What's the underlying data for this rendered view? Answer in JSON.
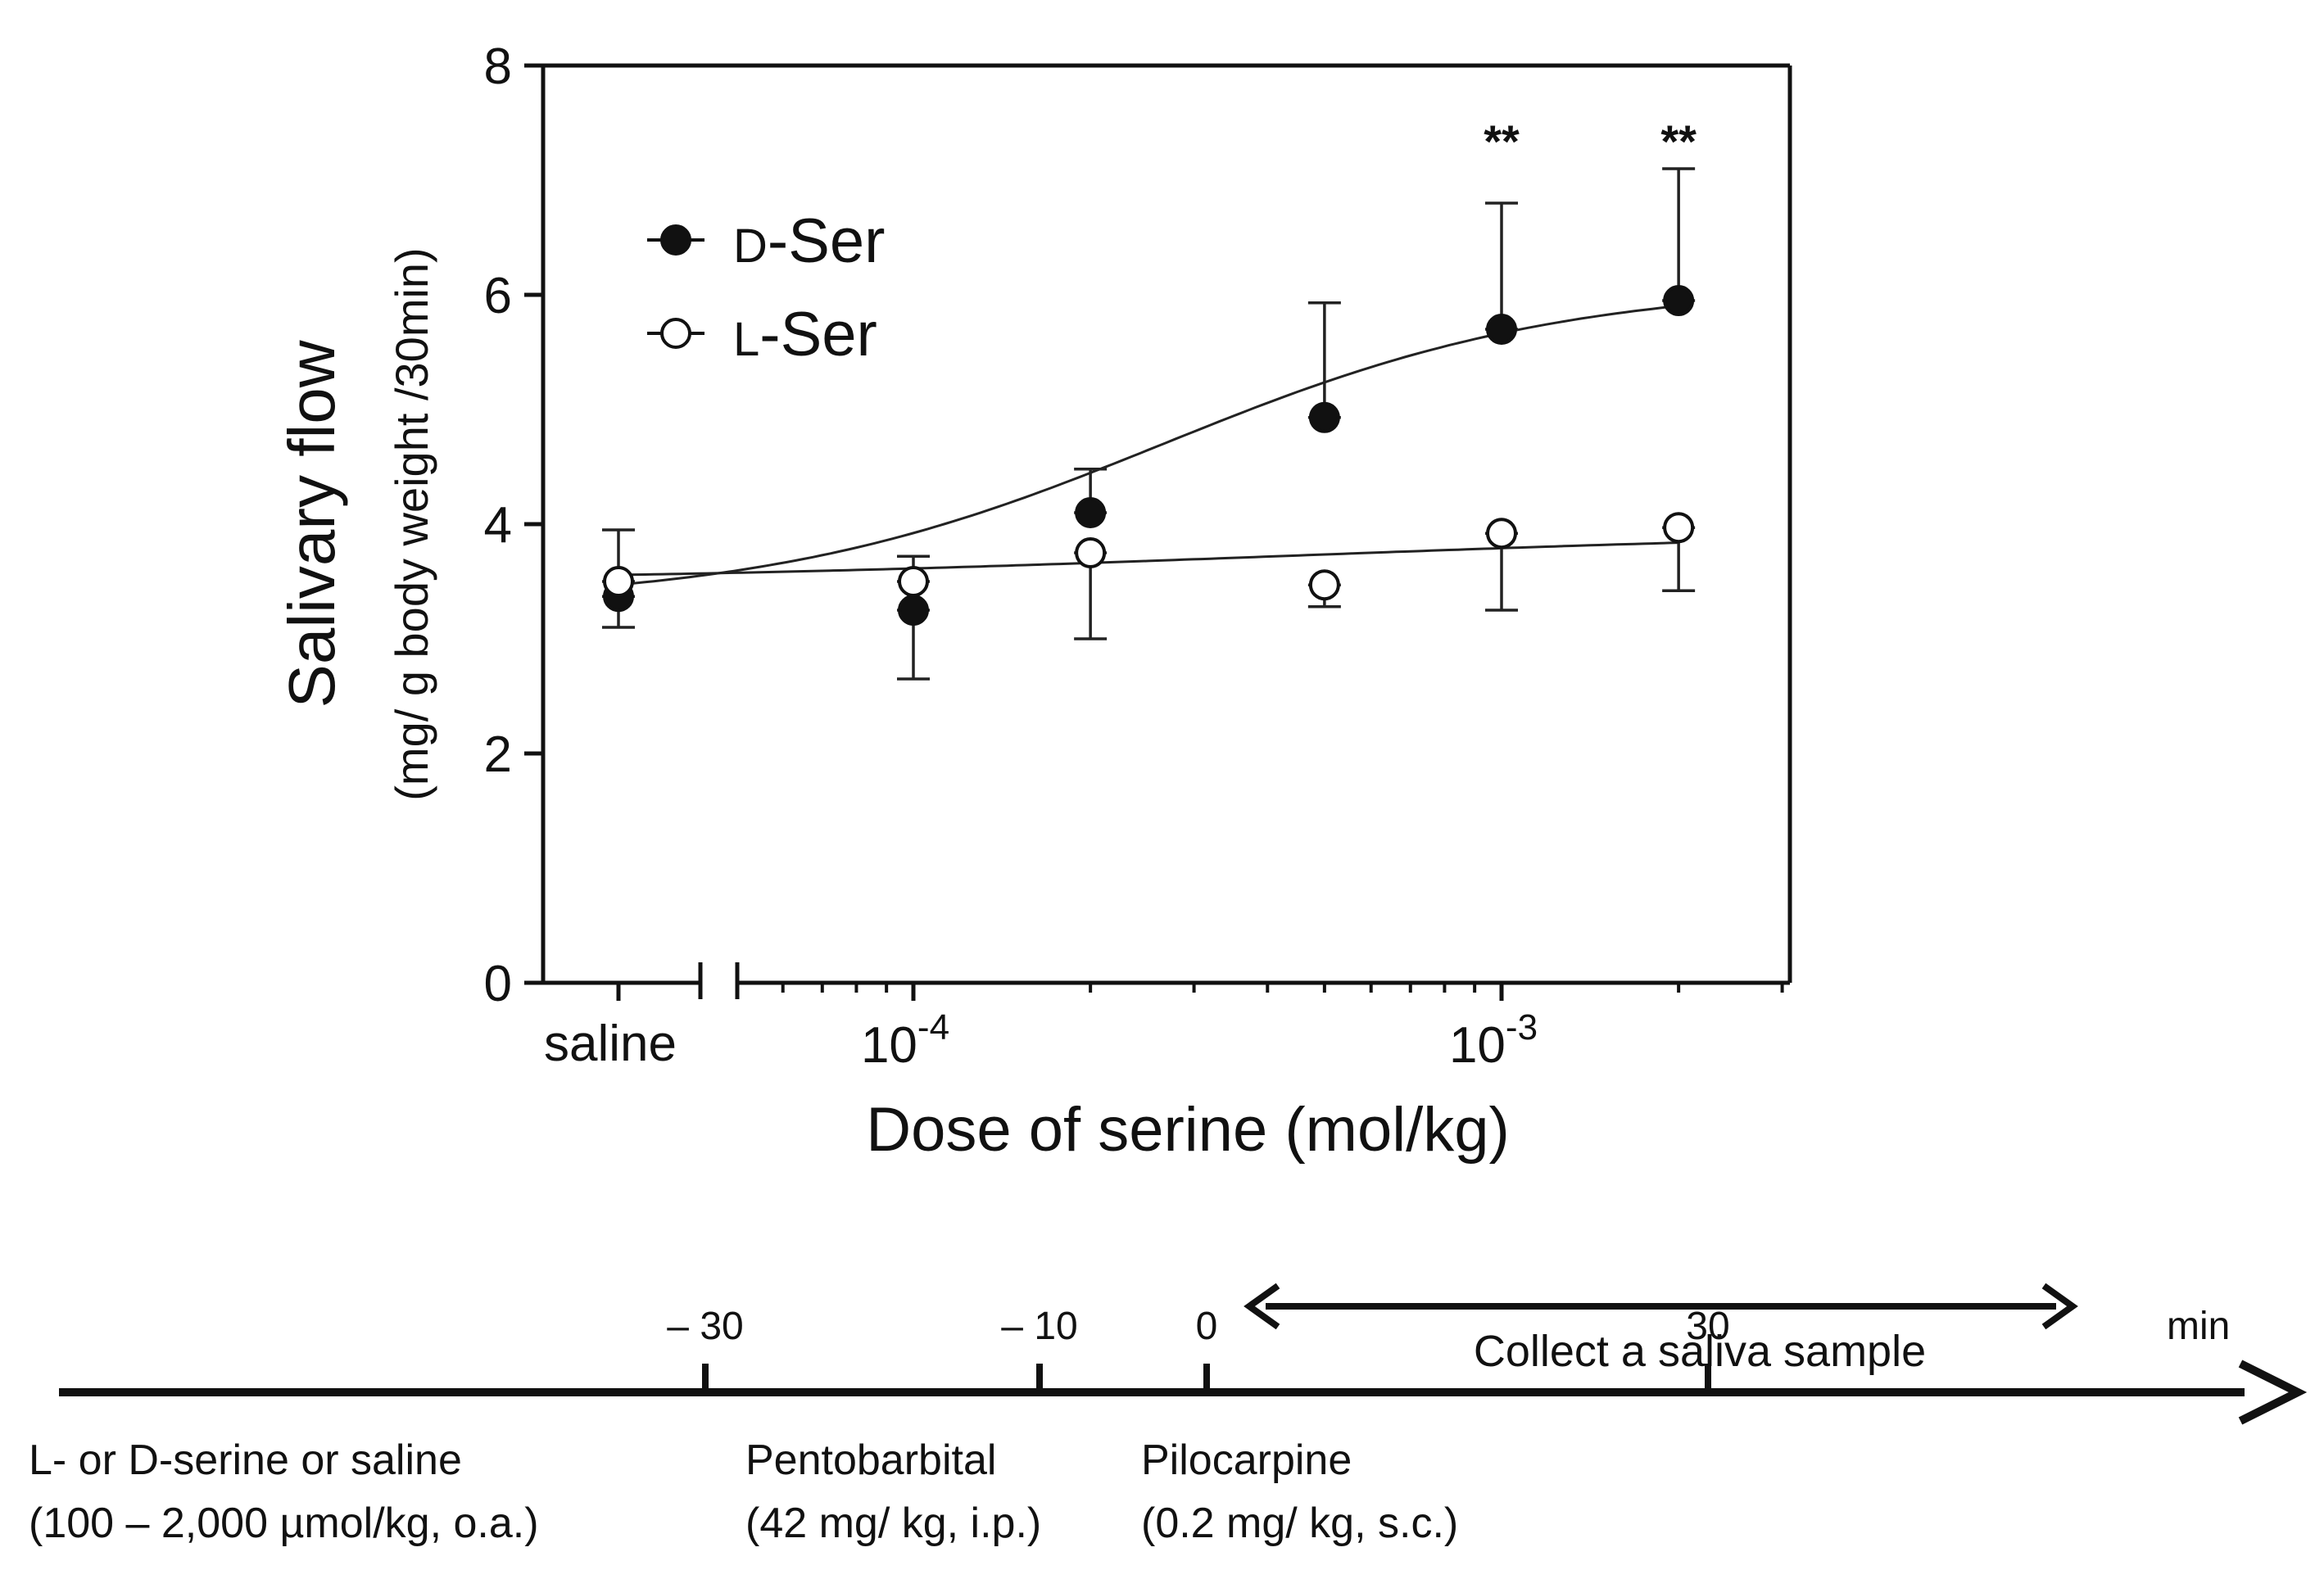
{
  "chart_data": {
    "type": "scatter",
    "title": "",
    "xlabel": "Dose of serine (mol/kg)",
    "ylabel": "Salivary flow",
    "ylabel_units": "(mg/ g body weight /30min)",
    "x_scale": "log",
    "xlim": [
      5e-05,
      0.003
    ],
    "ylim": [
      0,
      8
    ],
    "y_ticks": [
      "0",
      "2",
      "4",
      "6",
      "8"
    ],
    "x_ticks": [
      {
        "value": 0.0001,
        "base": "10",
        "exp": "-4"
      },
      {
        "value": 0.001,
        "base": "10",
        "exp": "-3"
      }
    ],
    "control_label": "saline",
    "series": [
      {
        "name": "D-Ser",
        "prefix": "D",
        "suffix": "-Ser",
        "marker": "filled-circle",
        "control": {
          "y": 3.37,
          "err_low": 3.1,
          "err_high": 3.37
        },
        "x": [
          0.0001,
          0.0002,
          0.0005,
          0.001,
          0.002
        ],
        "y": [
          3.25,
          4.1,
          4.93,
          5.7,
          5.95
        ],
        "err_low": [
          2.65,
          4.1,
          4.93,
          5.7,
          5.95
        ],
        "err_high": [
          3.25,
          4.48,
          5.93,
          6.8,
          7.1
        ],
        "fit": {
          "bottom": 3.3,
          "top": 6.1,
          "log_ec50": -3.5,
          "hill": 1.4
        }
      },
      {
        "name": "L-Ser",
        "prefix": "L",
        "suffix": "-Ser",
        "marker": "open-circle",
        "control": {
          "y": 3.5,
          "err_low": 3.5,
          "err_high": 3.95
        },
        "x": [
          0.0001,
          0.0002,
          0.0005,
          0.001,
          0.002
        ],
        "y": [
          3.5,
          3.75,
          3.47,
          3.92,
          3.97
        ],
        "err_low": [
          3.5,
          3.0,
          3.28,
          3.25,
          3.42
        ],
        "err_high": [
          3.72,
          3.75,
          3.47,
          3.92,
          3.97
        ],
        "fit": {
          "bottom": 3.5,
          "top": 3.95,
          "log_ec50": -3.3,
          "hill": 0.8
        }
      }
    ],
    "annotations": [
      {
        "x": 0.001,
        "text": "**"
      },
      {
        "x": 0.002,
        "text": "**"
      }
    ]
  },
  "timeline": {
    "unit": "min",
    "ticks": [
      {
        "t": -30,
        "label": "– 30"
      },
      {
        "t": -10,
        "label": "– 10"
      },
      {
        "t": 0,
        "label": "0"
      },
      {
        "t": 30,
        "label": "30"
      }
    ],
    "collect_label": "Collect a saliva sample",
    "events": [
      {
        "t": -30,
        "line1": "L- or D-serine or saline",
        "line2": "(100  – 2,000 µmol/kg, o.a.)"
      },
      {
        "t": -10,
        "line1": "Pentobarbital",
        "line2": "(42 mg/ kg, i.p.)"
      },
      {
        "t": 0,
        "line1": "Pilocarpine",
        "line2": "(0.2 mg/ kg, s.c.)"
      }
    ]
  }
}
